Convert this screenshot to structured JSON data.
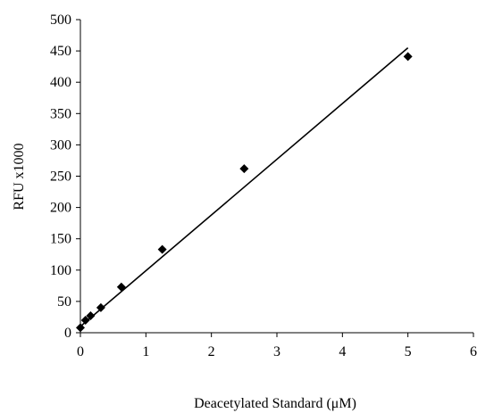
{
  "chart_data": {
    "type": "scatter",
    "xlabel": "Deacetylated Standard (μM)",
    "ylabel": "RFU x1000",
    "xlim": [
      0,
      6
    ],
    "ylim": [
      0,
      500
    ],
    "x_ticks": [
      0,
      1,
      2,
      3,
      4,
      5,
      6
    ],
    "y_ticks": [
      0,
      50,
      100,
      150,
      200,
      250,
      300,
      350,
      400,
      450,
      500
    ],
    "x_tick_labels": [
      "0",
      "1",
      "2",
      "3",
      "4",
      "5",
      "6"
    ],
    "y_tick_labels": [
      "0",
      "50",
      "100",
      "150",
      "200",
      "250",
      "300",
      "350",
      "400",
      "450",
      "500"
    ],
    "grid": false,
    "legend": "none",
    "marker": "diamond",
    "colors": {
      "marker": "#000000",
      "line": "#000000",
      "axis": "#000000",
      "text": "#000000"
    },
    "series": [
      {
        "x": [
          0,
          0.078,
          0.156,
          0.3125,
          0.625,
          1.25,
          2.5,
          5.0
        ],
        "y": [
          8,
          20,
          27,
          40,
          73,
          133,
          262,
          441
        ]
      }
    ],
    "trendline": {
      "type": "linear",
      "x": [
        0,
        5.0
      ],
      "y": [
        10,
        455
      ]
    }
  }
}
